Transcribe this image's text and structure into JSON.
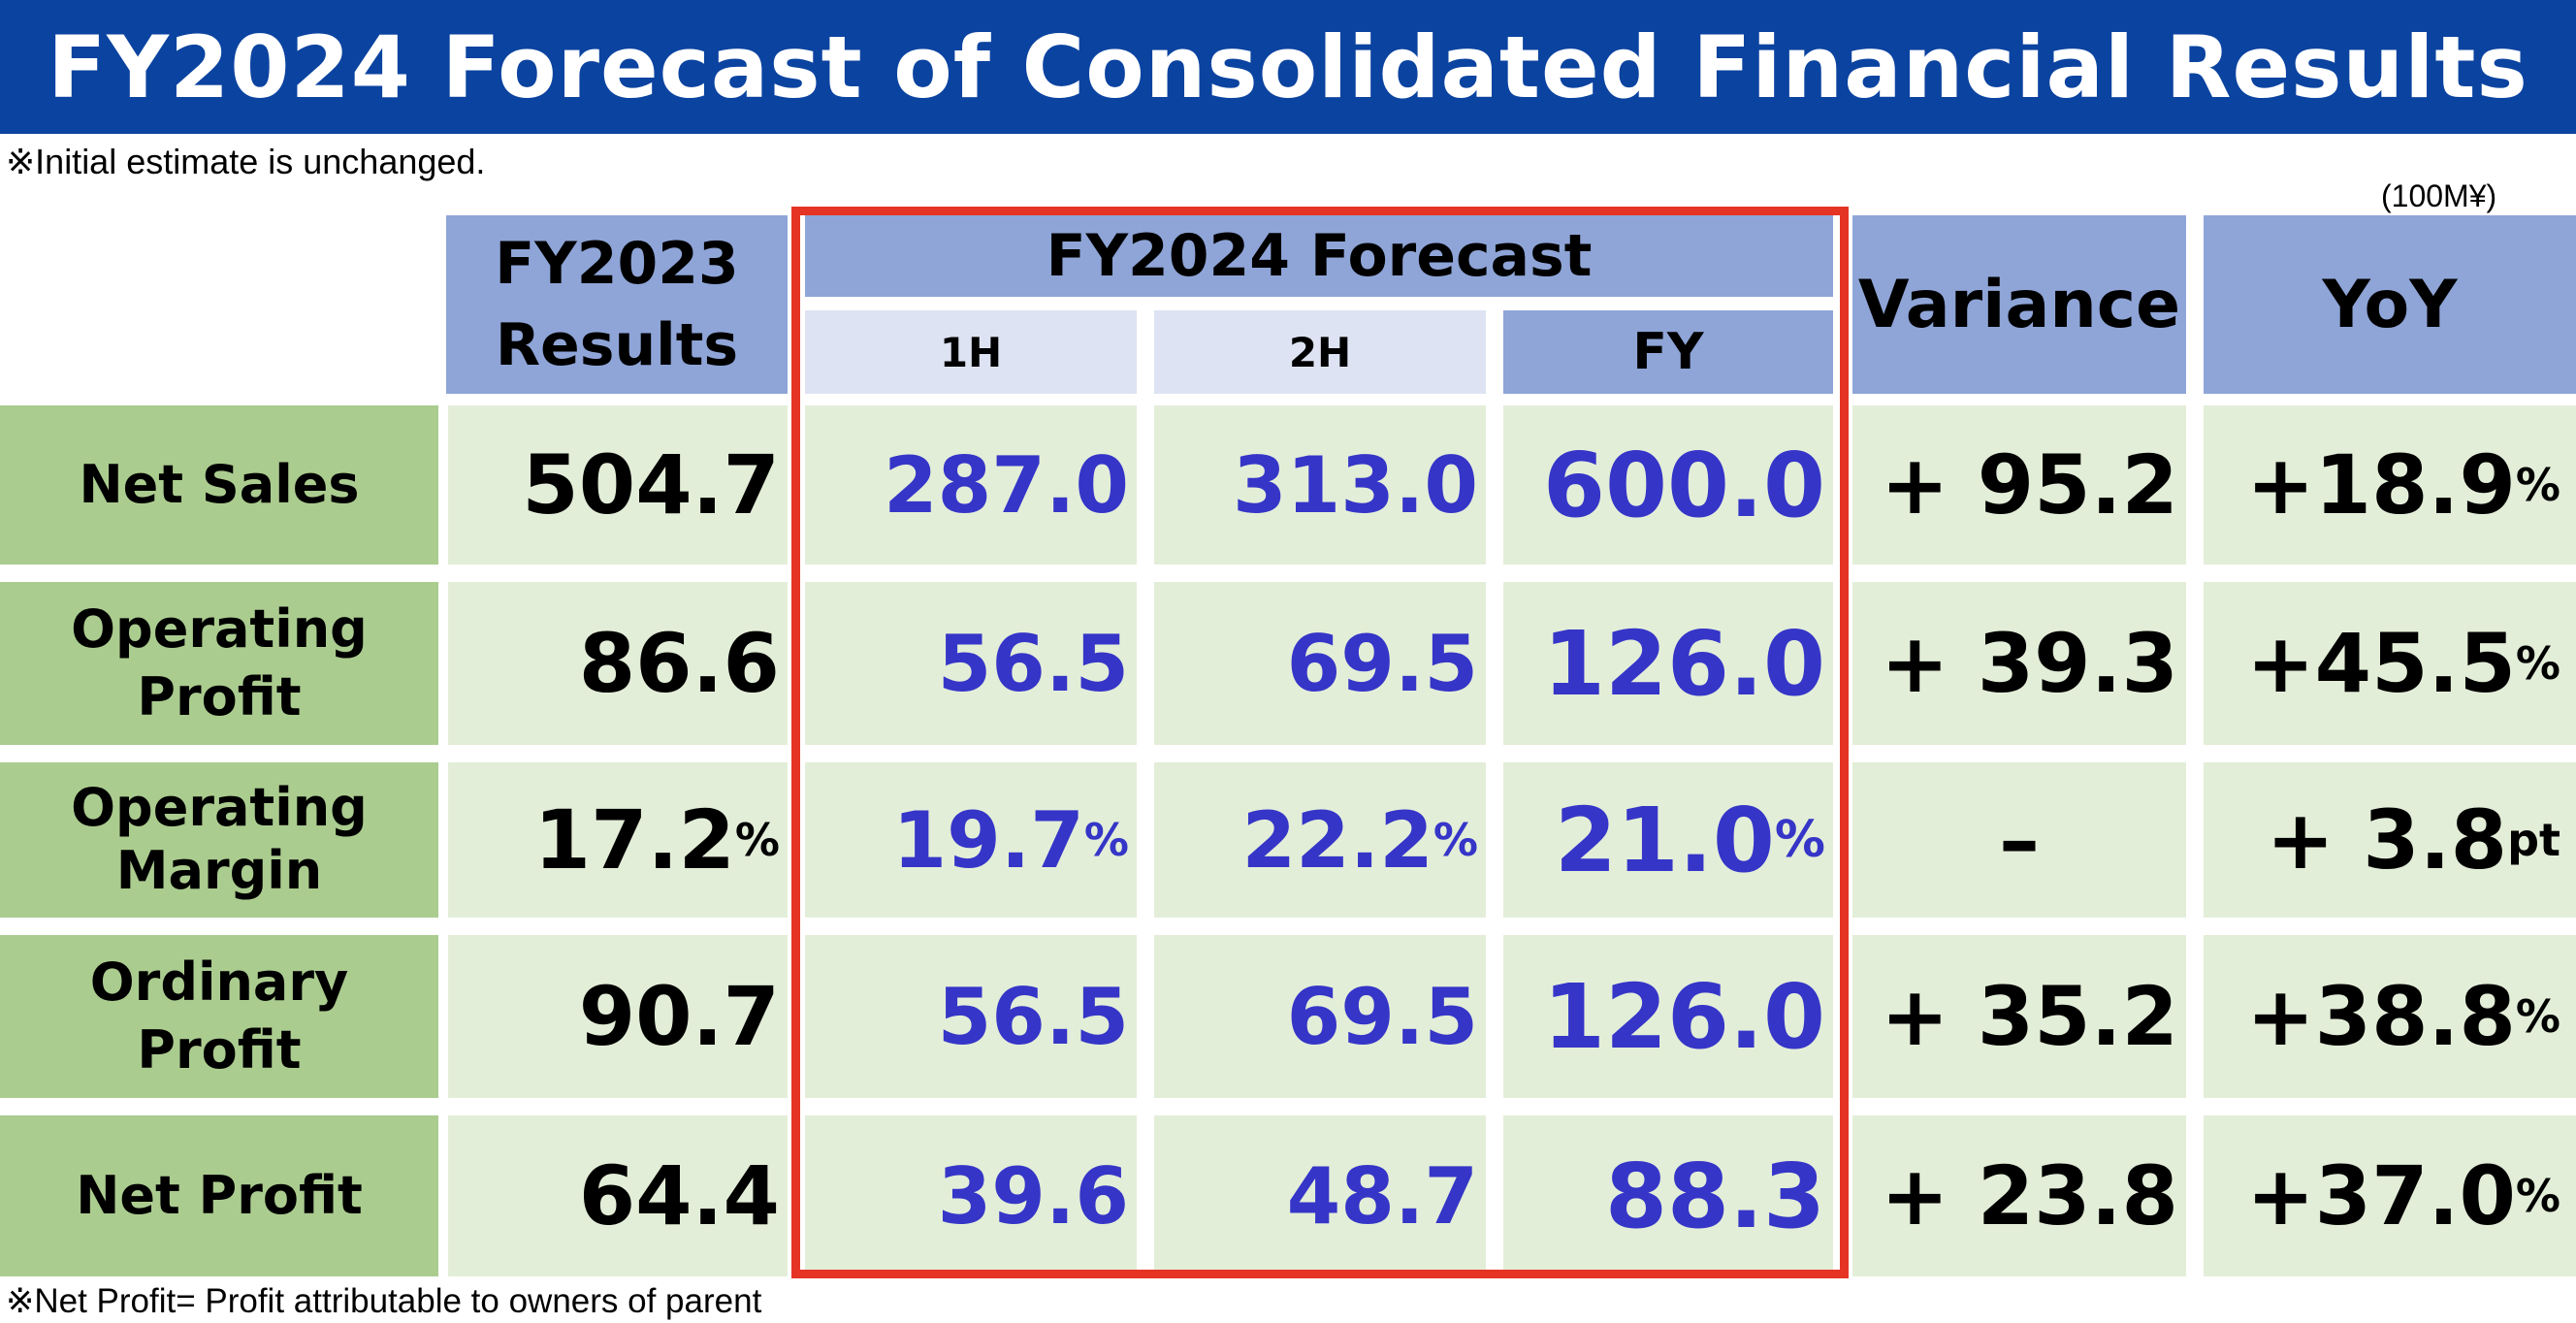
{
  "title": "FY2024 Forecast of Consolidated Financial Results",
  "note_top": "※Initial estimate is unchanged.",
  "unit": "(100M¥)",
  "note_bottom": "※Net Profit= Profit attributable to owners of parent",
  "headers": {
    "fy2023_line1": "FY2023",
    "fy2023_line2": "Results",
    "fy2024_forecast": "FY2024 Forecast",
    "h1": "1H",
    "h2": "2H",
    "fy": "FY",
    "variance": "Variance",
    "yoy": "YoY"
  },
  "rows": [
    {
      "label_l1": "Net Sales",
      "label_l2": "",
      "fy2023": "504.7",
      "fy2023_unit": "",
      "h1": "287.0",
      "h1_unit": "",
      "h2": "313.0",
      "h2_unit": "",
      "fy": "600.0",
      "fy_unit": "",
      "variance": "+ 95.2",
      "yoy": "+18.9",
      "yoy_unit": "%"
    },
    {
      "label_l1": "Operating",
      "label_l2": "Profit",
      "fy2023": "86.6",
      "fy2023_unit": "",
      "h1": "56.5",
      "h1_unit": "",
      "h2": "69.5",
      "h2_unit": "",
      "fy": "126.0",
      "fy_unit": "",
      "variance": "+ 39.3",
      "yoy": "+45.5",
      "yoy_unit": "%"
    },
    {
      "label_l1": "Operating",
      "label_l2": "Margin",
      "fy2023": "17.2",
      "fy2023_unit": "%",
      "h1": "19.7",
      "h1_unit": "%",
      "h2": "22.2",
      "h2_unit": "%",
      "fy": "21.0",
      "fy_unit": "%",
      "variance": "–",
      "yoy": "+ 3.8",
      "yoy_unit": "pt"
    },
    {
      "label_l1": "Ordinary",
      "label_l2": "Profit",
      "fy2023": "90.7",
      "fy2023_unit": "",
      "h1": "56.5",
      "h1_unit": "",
      "h2": "69.5",
      "h2_unit": "",
      "fy": "126.0",
      "fy_unit": "",
      "variance": "+ 35.2",
      "yoy": "+38.8",
      "yoy_unit": "%"
    },
    {
      "label_l1": "Net Profit",
      "label_l2": "",
      "fy2023": "64.4",
      "fy2023_unit": "",
      "h1": "39.6",
      "h1_unit": "",
      "h2": "48.7",
      "h2_unit": "",
      "fy": "88.3",
      "fy_unit": "",
      "variance": "+ 23.8",
      "yoy": "+37.0",
      "yoy_unit": "%"
    }
  ]
}
